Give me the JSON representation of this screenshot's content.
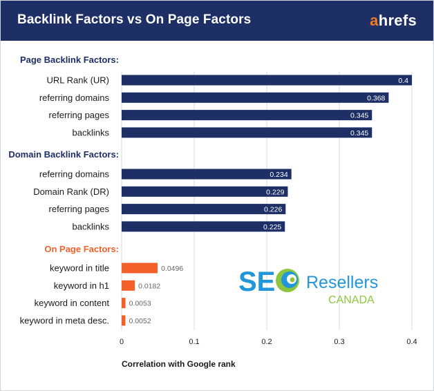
{
  "header": {
    "title": "Backlink Factors vs On Page Factors",
    "brand_accent": "a",
    "brand_rest": "hrefs"
  },
  "colors": {
    "header_bg": "#1e2f66",
    "backlink_bar": "#1e2f66",
    "onpage_bar": "#f4602a",
    "group_title_blue": "#1e2f66",
    "group_title_orange": "#f4602a",
    "grid": "#d7d9de",
    "logo_blue": "#2196d8",
    "logo_green": "#8cc63f"
  },
  "watermark": {
    "seo": "SEO",
    "resellers": "Resellers",
    "canada": "CANADA"
  },
  "chart_data": {
    "type": "bar",
    "orientation": "horizontal",
    "xlabel": "Correlation with Google rank",
    "xlim": [
      0,
      0.4
    ],
    "xticks": [
      0,
      0.1,
      0.2,
      0.3,
      0.4
    ],
    "xtick_labels": [
      "0",
      "0.1",
      "0.2",
      "0.3",
      "0.4"
    ],
    "grid": "vertical",
    "groups": [
      {
        "title": "Page Backlink Factors:",
        "color": "#1e2f66",
        "label_style": "inside",
        "items": [
          {
            "label": "URL Rank (UR)",
            "value": 0.4,
            "value_label": "0.4"
          },
          {
            "label": "referring domains",
            "value": 0.368,
            "value_label": "0.368"
          },
          {
            "label": "referring pages",
            "value": 0.345,
            "value_label": "0.345"
          },
          {
            "label": "backlinks",
            "value": 0.345,
            "value_label": "0.345"
          }
        ]
      },
      {
        "title": "Domain Backlink Factors:",
        "color": "#1e2f66",
        "label_style": "inside",
        "items": [
          {
            "label": "referring domains",
            "value": 0.234,
            "value_label": "0.234"
          },
          {
            "label": "Domain Rank (DR)",
            "value": 0.229,
            "value_label": "0.229"
          },
          {
            "label": "referring pages",
            "value": 0.226,
            "value_label": "0.226"
          },
          {
            "label": "backlinks",
            "value": 0.225,
            "value_label": "0.225"
          }
        ]
      },
      {
        "title": "On Page Factors:",
        "color": "#f4602a",
        "label_style": "outside",
        "items": [
          {
            "label": "keyword in title",
            "value": 0.0496,
            "value_label": "0.0496"
          },
          {
            "label": "keyword in h1",
            "value": 0.0182,
            "value_label": "0.0182"
          },
          {
            "label": "keyword in content",
            "value": 0.0053,
            "value_label": "0.0053"
          },
          {
            "label": "keyword in meta desc.",
            "value": 0.0052,
            "value_label": "0.0052"
          }
        ]
      }
    ]
  }
}
